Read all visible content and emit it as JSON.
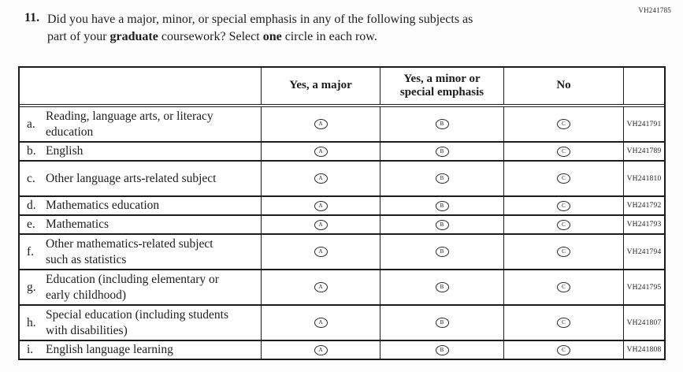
{
  "page": {
    "form_code": "VH241785"
  },
  "question": {
    "number": "11.",
    "line1": "Did you have a major, minor, or special emphasis in any of the following subjects as",
    "line2_part1": "part of your ",
    "line2_bold1": "graduate",
    "line2_part2": " coursework? Select ",
    "line2_bold2": "one",
    "line2_part3": " circle in each row."
  },
  "table": {
    "options": [
      {
        "letter": "A",
        "label": "Yes, a major"
      },
      {
        "letter": "B",
        "label": "Yes, a minor or special emphasis"
      },
      {
        "letter": "C",
        "label": "No"
      }
    ],
    "rows": [
      {
        "letter": "a.",
        "subject": "Reading, language arts, or literacy education",
        "code": "VH241791"
      },
      {
        "letter": "b.",
        "subject": "English",
        "code": "VH241789"
      },
      {
        "letter": "c.",
        "subject": "Other language arts-related subject",
        "code": "VH241810"
      },
      {
        "letter": "d.",
        "subject": "Mathematics education",
        "code": "VH241792"
      },
      {
        "letter": "e.",
        "subject": "Mathematics",
        "code": "VH241793"
      },
      {
        "letter": "f.",
        "subject": "Other mathematics-related subject such as statistics",
        "code": "VH241794"
      },
      {
        "letter": "g.",
        "subject": "Education (including elementary or early childhood)",
        "code": "VH241795"
      },
      {
        "letter": "h.",
        "subject": "Special education (including students with disabilities)",
        "code": "VH241807"
      },
      {
        "letter": "i.",
        "subject": "English language learning",
        "code": "VH241808"
      }
    ]
  }
}
